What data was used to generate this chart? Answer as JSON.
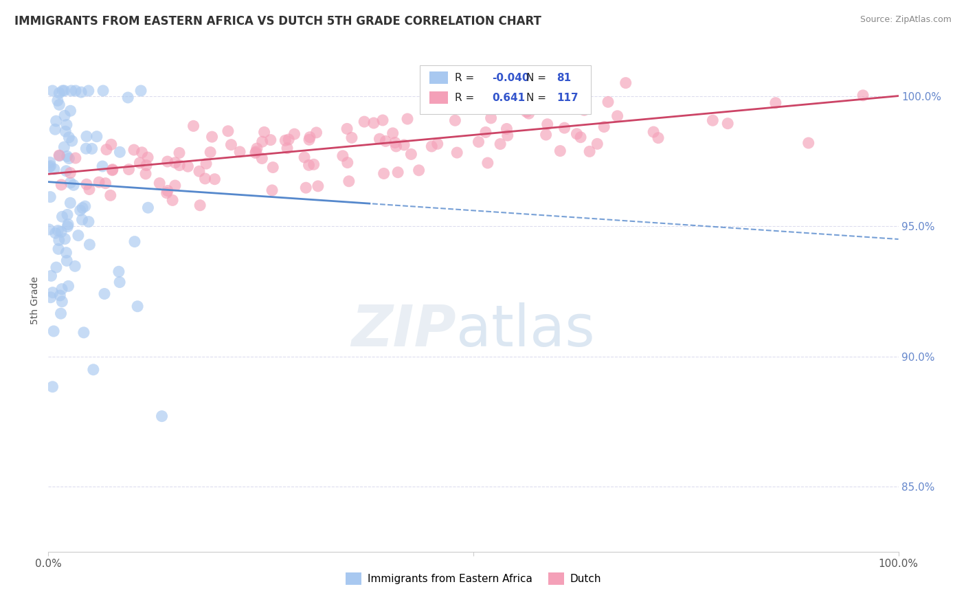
{
  "title": "IMMIGRANTS FROM EASTERN AFRICA VS DUTCH 5TH GRADE CORRELATION CHART",
  "source": "Source: ZipAtlas.com",
  "ylabel": "5th Grade",
  "xlim": [
    0.0,
    1.0
  ],
  "ylim": [
    0.825,
    1.018
  ],
  "y_ticks": [
    0.85,
    0.9,
    0.95,
    1.0
  ],
  "y_tick_labels_right": [
    "85.0%",
    "90.0%",
    "95.0%",
    "100.0%"
  ],
  "legend_label1": "Immigrants from Eastern Africa",
  "legend_label2": "Dutch",
  "R1": "-0.040",
  "N1": "81",
  "R2": "0.641",
  "N2": "117",
  "color_blue": "#a8c8f0",
  "color_pink": "#f4a0b8",
  "color_line_blue": "#5588cc",
  "color_line_pink": "#cc4466",
  "background_color": "#ffffff",
  "title_color": "#333333",
  "r_value_color": "#3355cc",
  "tick_color": "#6688cc",
  "grid_color": "#ddddee"
}
